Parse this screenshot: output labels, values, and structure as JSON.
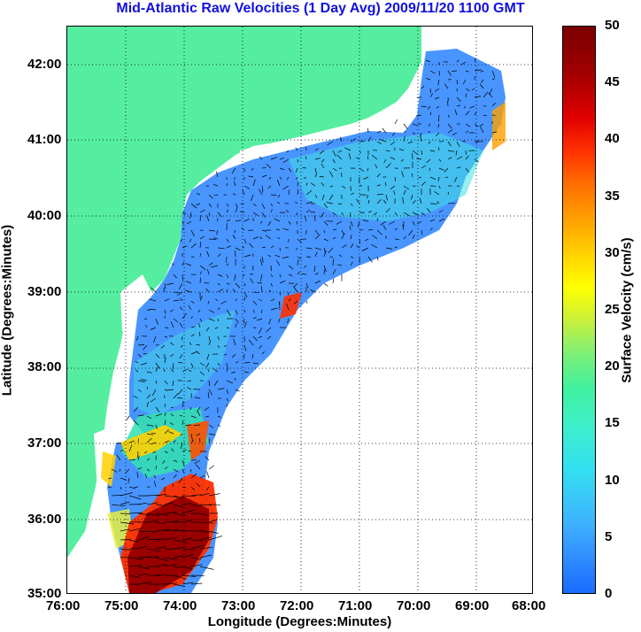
{
  "title": "Mid-Atlantic Raw Velocities (1 Day Avg) 2009/11/20 1100 GMT",
  "axes": {
    "xlabel": "Longitude (Degrees:Minutes)",
    "ylabel": "Latitude (Degrees:Minutes)",
    "x_ticks": [
      "76:00",
      "75:00",
      "74:00",
      "73:00",
      "72:00",
      "71:00",
      "70:00",
      "69:00",
      "68:00"
    ],
    "y_ticks": [
      "42:00",
      "41:00",
      "40:00",
      "39:00",
      "38:00",
      "37:00",
      "36:00",
      "35:00"
    ],
    "xlim": [
      -76,
      -68
    ],
    "ylim": [
      35,
      42.5
    ],
    "grid": "dotted"
  },
  "colorbar": {
    "label": "Surface Velocity (cm/s)",
    "ticks": [
      "50",
      "45",
      "40",
      "35",
      "30",
      "25",
      "20",
      "15",
      "10",
      "5",
      "0"
    ],
    "range": [
      0,
      50
    ],
    "colormap": "jet"
  },
  "colors": {
    "land": "#55eea0",
    "title": "#1111dd",
    "field_low": "#3a8cff",
    "field_mid": "#3fe0e0",
    "field_high": "#7a0000"
  }
}
